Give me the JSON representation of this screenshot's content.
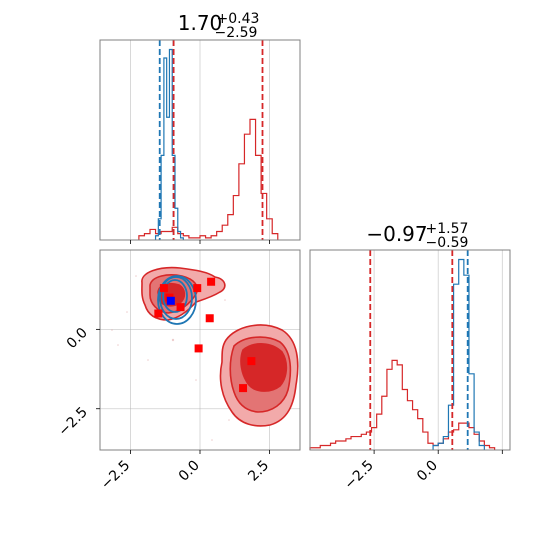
{
  "colors": {
    "red": "#d62728",
    "red_fill_light": "#f2aaaa",
    "red_fill_mid": "#e37474",
    "red_fill_dark": "#d62728",
    "blue": "#1f77b4",
    "marker_red": "#ff0000",
    "marker_blue": "#0000ff",
    "grid": "#b0b0b0",
    "axes": "#808080"
  },
  "chart_data": [
    {
      "type": "histogram",
      "panel": "top-left marginal",
      "title": {
        "main": "1.70",
        "sup": "+0.43",
        "sub": "−2.59"
      },
      "xlim": [
        -3.6,
        3.6
      ],
      "grid": true,
      "series": [
        {
          "color": "red",
          "x": [
            -2.1,
            -1.9,
            -1.7,
            -1.5,
            -1.3,
            -1.1,
            -0.9,
            -0.7,
            -0.5,
            -0.3,
            -0.1,
            0.1,
            0.3,
            0.5,
            0.7,
            0.9,
            1.1,
            1.3,
            1.5,
            1.7,
            1.9,
            2.1,
            2.3,
            2.5,
            2.7
          ],
          "values": [
            0.02,
            0.03,
            0.05,
            0.03,
            0.04,
            0.04,
            0.06,
            0.03,
            0.02,
            0.01,
            0.01,
            0.02,
            0.01,
            0.02,
            0.04,
            0.07,
            0.12,
            0.21,
            0.36,
            0.5,
            0.57,
            0.4,
            0.22,
            0.1,
            0.03
          ]
        },
        {
          "color": "blue",
          "x": [
            -1.55,
            -1.45,
            -1.35,
            -1.25,
            -1.15,
            -1.05,
            -0.95,
            -0.85,
            -0.75,
            -0.65
          ],
          "values": [
            0.02,
            0.1,
            0.4,
            0.86,
            0.58,
            0.9,
            0.4,
            0.15,
            0.04,
            0.01
          ]
        }
      ],
      "vlines": [
        {
          "x": -1.45,
          "color": "blue"
        },
        {
          "x": -0.95,
          "color": "blue"
        },
        {
          "x": -0.95,
          "color": "red"
        },
        {
          "x": 2.25,
          "color": "red"
        }
      ]
    },
    {
      "type": "histogram",
      "panel": "bottom-right marginal",
      "title": {
        "main": "−0.97",
        "sup": "+1.57",
        "sub": "−0.59"
      },
      "xlim": [
        -5.0,
        2.8
      ],
      "xticks": [
        "−2.5",
        "0.0"
      ],
      "grid": true,
      "series": [
        {
          "color": "red",
          "x": [
            -4.9,
            -4.7,
            -4.5,
            -4.3,
            -4.1,
            -3.9,
            -3.7,
            -3.5,
            -3.3,
            -3.1,
            -2.9,
            -2.7,
            -2.5,
            -2.3,
            -2.1,
            -1.9,
            -1.7,
            -1.5,
            -1.3,
            -1.1,
            -0.9,
            -0.7,
            -0.5,
            -0.3,
            -0.1,
            0.1,
            0.3,
            0.5,
            0.7,
            0.9,
            1.1,
            1.3,
            1.5,
            1.7,
            1.9,
            2.1
          ],
          "values": [
            0.01,
            0.01,
            0.02,
            0.02,
            0.03,
            0.04,
            0.04,
            0.05,
            0.06,
            0.06,
            0.07,
            0.08,
            0.1,
            0.16,
            0.24,
            0.36,
            0.4,
            0.38,
            0.27,
            0.22,
            0.18,
            0.14,
            0.08,
            0.03,
            0.02,
            0.03,
            0.05,
            0.08,
            0.09,
            0.12,
            0.12,
            0.1,
            0.07,
            0.04,
            0.02,
            0.01
          ]
        },
        {
          "color": "blue",
          "x": [
            -0.1,
            0.1,
            0.3,
            0.5,
            0.7,
            0.9,
            1.1,
            1.3,
            1.5,
            1.7
          ],
          "values": [
            0.02,
            0.03,
            0.06,
            0.2,
            0.74,
            0.85,
            0.78,
            0.34,
            0.08,
            0.02
          ]
        }
      ],
      "vlines": [
        {
          "x": -2.65,
          "color": "red"
        },
        {
          "x": 0.55,
          "color": "red"
        },
        {
          "x": 1.15,
          "color": "blue"
        }
      ]
    },
    {
      "type": "contour",
      "panel": "bottom-left joint",
      "xlim": [
        -3.6,
        3.6
      ],
      "ylim": [
        -3.8,
        2.5
      ],
      "xticks": [
        "−2.5",
        "0.0",
        "2.5"
      ],
      "yticks": [
        "0.0",
        "−2.5"
      ],
      "grid": true,
      "markers_red": [
        [
          -1.1,
          1.0
        ],
        [
          -1.3,
          1.3
        ],
        [
          -1.5,
          0.5
        ],
        [
          -0.7,
          0.7
        ],
        [
          -0.1,
          1.3
        ],
        [
          0.4,
          1.5
        ],
        [
          0.35,
          0.35
        ],
        [
          -0.05,
          -0.6
        ],
        [
          1.85,
          -1.0
        ],
        [
          1.55,
          -1.85
        ]
      ],
      "markers_blue": [
        [
          -1.05,
          0.9
        ]
      ]
    }
  ]
}
